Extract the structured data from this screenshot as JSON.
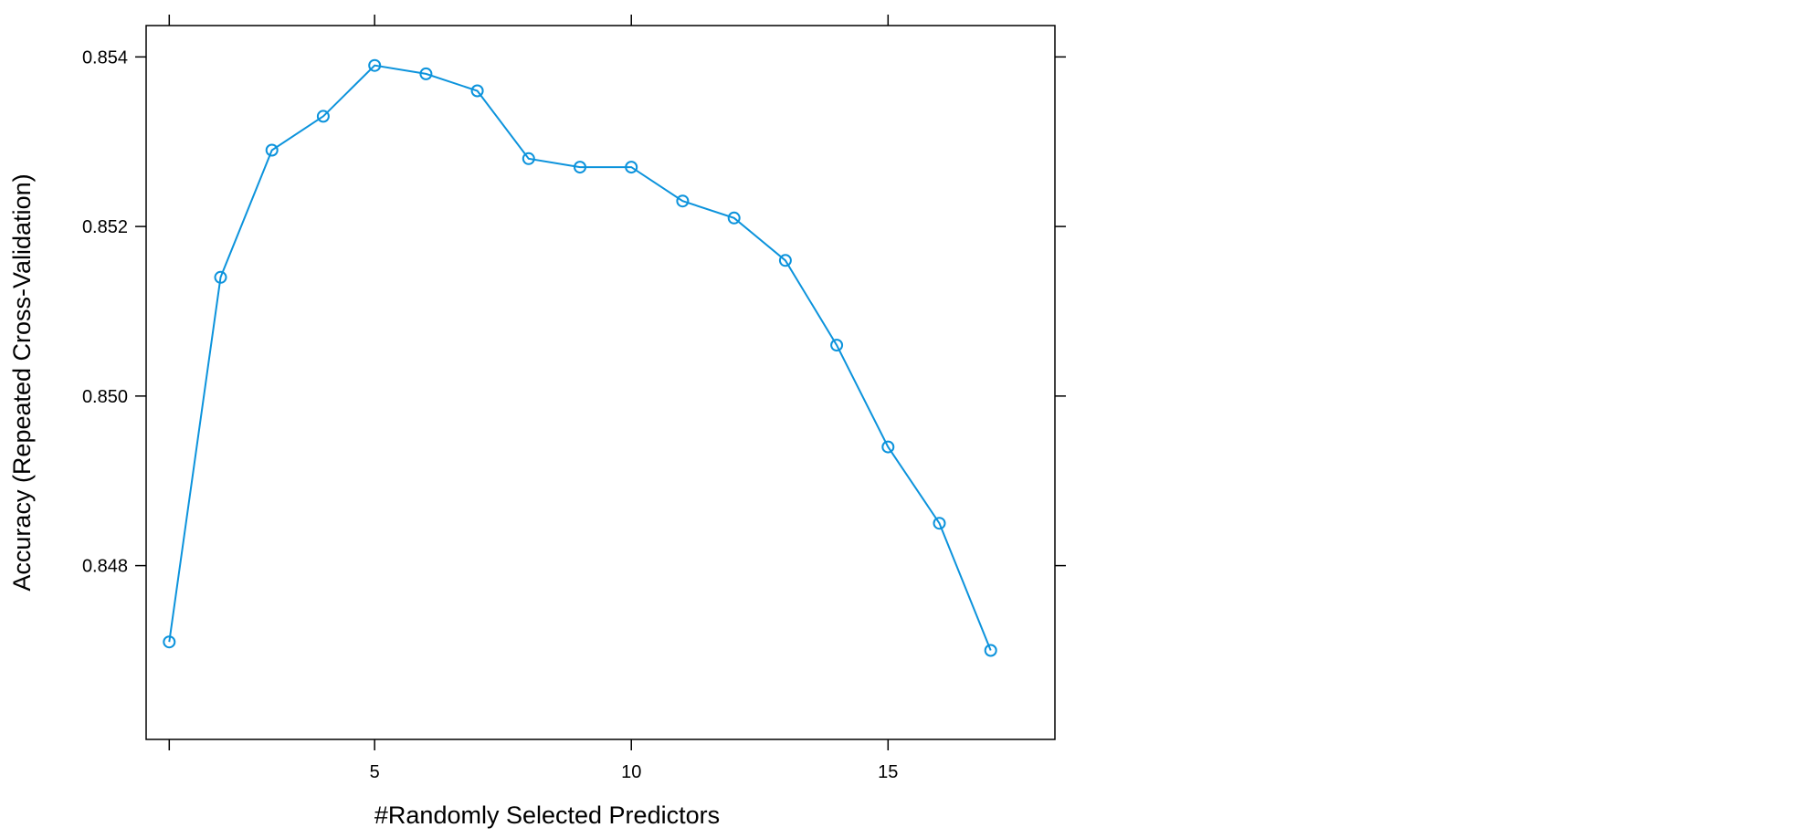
{
  "chart_data": {
    "type": "line",
    "title": "",
    "xlabel": "#Randomly Selected Predictors",
    "ylabel": "Accuracy (Repeated Cross-Validation)",
    "xlim": [
      0.55,
      18.25
    ],
    "ylim": [
      0.84595,
      0.85437
    ],
    "x_ticks": [
      1,
      5,
      10,
      15
    ],
    "x_tick_labels": [
      "",
      "5",
      "10",
      "15"
    ],
    "y_ticks": [
      0.848,
      0.85,
      0.852,
      0.854
    ],
    "y_tick_labels": [
      "0.848",
      "0.850",
      "0.852",
      "0.854"
    ],
    "grid": false,
    "series": [
      {
        "color": "#0c93dc",
        "marker": "open-circle",
        "x": [
          1,
          2,
          3,
          4,
          5,
          6,
          7,
          8,
          9,
          10,
          11,
          12,
          13,
          14,
          15,
          16,
          17
        ],
        "values": [
          0.8471,
          0.8514,
          0.8529,
          0.8533,
          0.8539,
          0.8538,
          0.8536,
          0.8528,
          0.8527,
          0.8527,
          0.8523,
          0.8521,
          0.8516,
          0.8506,
          0.8494,
          0.8485,
          0.847
        ]
      }
    ]
  }
}
